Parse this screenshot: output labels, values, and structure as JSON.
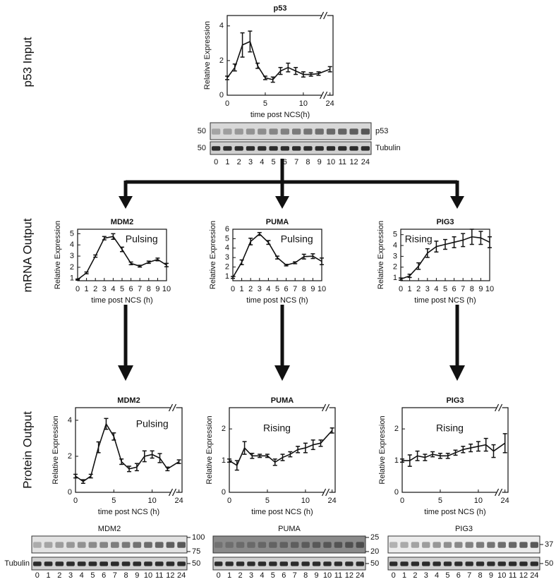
{
  "figure_labels": {
    "p53_input": "p53 Input",
    "mrna_output": "mRNA Output",
    "protein_output": "Protein Output"
  },
  "chart_data": [
    {
      "type": "line",
      "title": "p53",
      "x_label": "time post NCS(h)",
      "y_label": "Relative Expression",
      "x": [
        0,
        1,
        2,
        3,
        4,
        5,
        6,
        7,
        8,
        9,
        10,
        11,
        12,
        24
      ],
      "values": [
        1.0,
        1.6,
        2.9,
        3.1,
        1.7,
        1.0,
        0.9,
        1.4,
        1.6,
        1.4,
        1.2,
        1.2,
        1.25,
        1.5
      ],
      "errors": [
        0.1,
        0.2,
        0.7,
        0.6,
        0.15,
        0.1,
        0.15,
        0.2,
        0.25,
        0.2,
        0.15,
        0.1,
        0.1,
        0.15
      ],
      "xlim": [
        0,
        24
      ],
      "axis_break": [
        12,
        24
      ],
      "xticks": [
        0,
        5,
        10,
        24
      ],
      "ylim": [
        0,
        4.6
      ],
      "yticks": [
        0,
        2,
        4
      ],
      "color": "#111"
    },
    {
      "type": "line",
      "title": "MDM2",
      "x_label": "time post NCS (h)",
      "y_label": "Relative Expression",
      "annotation": "Pulsing",
      "x": [
        0,
        1,
        2,
        3,
        4,
        5,
        6,
        7,
        8,
        9,
        10
      ],
      "values": [
        0.9,
        1.5,
        3.0,
        4.6,
        4.75,
        3.6,
        2.35,
        2.1,
        2.45,
        2.7,
        2.2
      ],
      "errors": [
        0.05,
        0.08,
        0.1,
        0.15,
        0.25,
        0.2,
        0.12,
        0.08,
        0.1,
        0.12,
        0.15
      ],
      "xlim": [
        0,
        10
      ],
      "xticks": [
        0,
        1,
        2,
        3,
        4,
        5,
        6,
        7,
        8,
        9,
        10
      ],
      "ylim": [
        0.8,
        5.4
      ],
      "yticks": [
        1,
        2,
        3,
        4,
        5
      ],
      "color": "#111"
    },
    {
      "type": "line",
      "title": "PUMA",
      "x_label": "time post NCS (h)",
      "y_label": "Relative Expression",
      "annotation": "Pulsing",
      "x": [
        0,
        1,
        2,
        3,
        4,
        5,
        6,
        7,
        8,
        9,
        10
      ],
      "values": [
        0.9,
        2.5,
        4.7,
        5.5,
        4.6,
        3.0,
        2.2,
        2.45,
        3.1,
        3.15,
        2.6
      ],
      "errors": [
        0.1,
        0.25,
        0.35,
        0.15,
        0.2,
        0.15,
        0.08,
        0.1,
        0.25,
        0.25,
        0.35
      ],
      "xlim": [
        0,
        10
      ],
      "xticks": [
        0,
        1,
        2,
        3,
        4,
        5,
        6,
        7,
        8,
        9,
        10
      ],
      "ylim": [
        0.55,
        6
      ],
      "yticks": [
        1,
        2,
        3,
        4,
        5,
        6
      ],
      "color": "#111"
    },
    {
      "type": "line",
      "title": "PIG3",
      "x_label": "time post NCS (h)",
      "y_label": "Relative Expression",
      "annotation": "Rising",
      "x": [
        0,
        1,
        2,
        3,
        4,
        5,
        6,
        7,
        8,
        9,
        10
      ],
      "values": [
        0.9,
        1.2,
        2.1,
        3.3,
        3.9,
        4.1,
        4.3,
        4.5,
        4.8,
        4.7,
        4.3
      ],
      "errors": [
        0.1,
        0.15,
        0.3,
        0.4,
        0.5,
        0.45,
        0.5,
        0.6,
        0.7,
        0.6,
        0.5
      ],
      "xlim": [
        0,
        10
      ],
      "xticks": [
        0,
        1,
        2,
        3,
        4,
        5,
        6,
        7,
        8,
        9,
        10
      ],
      "ylim": [
        0.75,
        5.5
      ],
      "yticks": [
        1,
        2,
        3,
        4,
        5
      ],
      "color": "#111"
    },
    {
      "type": "line",
      "title": "MDM2",
      "x_label": "time post NCS (h)",
      "y_label": "Relative Expression",
      "annotation": "Pulsing",
      "x": [
        0,
        1,
        2,
        3,
        4,
        5,
        6,
        7,
        8,
        9,
        10,
        11,
        12,
        24
      ],
      "values": [
        0.9,
        0.6,
        0.9,
        2.5,
        3.8,
        3.1,
        1.7,
        1.3,
        1.4,
        2.0,
        2.1,
        1.9,
        1.3,
        1.7
      ],
      "errors": [
        0.1,
        0.1,
        0.1,
        0.3,
        0.3,
        0.2,
        0.15,
        0.15,
        0.2,
        0.3,
        0.2,
        0.25,
        0.1,
        0.1
      ],
      "xlim": [
        0,
        24
      ],
      "axis_break": [
        12,
        24
      ],
      "xticks": [
        0,
        5,
        10,
        24
      ],
      "ylim": [
        0,
        4.7
      ],
      "yticks": [
        0,
        2,
        4
      ],
      "color": "#111"
    },
    {
      "type": "line",
      "title": "PUMA",
      "x_label": "time post NCS (h)",
      "y_label": "Relative Expression",
      "annotation": "Rising",
      "x": [
        0,
        1,
        2,
        3,
        4,
        5,
        6,
        7,
        8,
        9,
        10,
        11,
        12,
        24
      ],
      "values": [
        1.0,
        0.85,
        1.4,
        1.15,
        1.15,
        1.15,
        0.95,
        1.1,
        1.2,
        1.35,
        1.4,
        1.5,
        1.55,
        1.95
      ],
      "errors": [
        0.05,
        0.15,
        0.2,
        0.08,
        0.05,
        0.05,
        0.1,
        0.1,
        0.08,
        0.1,
        0.15,
        0.15,
        0.1,
        0.08
      ],
      "xlim": [
        0,
        24
      ],
      "axis_break": [
        12,
        24
      ],
      "xticks": [
        0,
        5,
        10,
        24
      ],
      "ylim": [
        0,
        2.67
      ],
      "yticks": [
        0,
        1,
        2
      ],
      "color": "#111"
    },
    {
      "type": "line",
      "title": "PIG3",
      "x_label": "time post NCS (h)",
      "y_label": "Relative Expression",
      "annotation": "Rising",
      "x": [
        0,
        1,
        2,
        3,
        4,
        5,
        6,
        7,
        8,
        9,
        10,
        11,
        12,
        24
      ],
      "values": [
        1.0,
        1.0,
        1.15,
        1.1,
        1.2,
        1.15,
        1.15,
        1.25,
        1.35,
        1.4,
        1.45,
        1.5,
        1.3,
        1.55
      ],
      "errors": [
        0.05,
        0.18,
        0.15,
        0.1,
        0.08,
        0.08,
        0.08,
        0.08,
        0.1,
        0.12,
        0.15,
        0.2,
        0.2,
        0.3
      ],
      "xlim": [
        0,
        24
      ],
      "axis_break": [
        12,
        24
      ],
      "xticks": [
        0,
        5,
        10,
        24
      ],
      "ylim": [
        0,
        2.67
      ],
      "yticks": [
        0,
        1,
        2
      ],
      "color": "#111"
    }
  ],
  "blots": [
    {
      "lanes": [
        0,
        1,
        2,
        3,
        4,
        5,
        6,
        7,
        8,
        9,
        10,
        11,
        12,
        24
      ],
      "rows": [
        {
          "label": "p53",
          "markers": [
            50
          ]
        },
        {
          "label": "Tubulin",
          "markers": [
            50
          ]
        }
      ]
    },
    {
      "title": "MDM2",
      "lanes": [
        0,
        1,
        2,
        3,
        4,
        5,
        6,
        7,
        8,
        9,
        10,
        11,
        12,
        24
      ],
      "rows": [
        {
          "markers": [
            100,
            75
          ]
        },
        {
          "label": "Tubulin",
          "markers": [
            50
          ]
        }
      ]
    },
    {
      "title": "PUMA",
      "lanes": [
        0,
        1,
        2,
        3,
        4,
        5,
        6,
        7,
        8,
        9,
        10,
        11,
        12,
        24
      ],
      "rows": [
        {
          "markers": [
            25,
            20
          ]
        },
        {
          "markers": [
            50
          ]
        }
      ]
    },
    {
      "title": "PIG3",
      "lanes": [
        0,
        1,
        2,
        3,
        4,
        5,
        6,
        7,
        8,
        9,
        10,
        11,
        12,
        24
      ],
      "rows": [
        {
          "markers": [
            37
          ]
        },
        {
          "markers": [
            50
          ]
        }
      ]
    }
  ]
}
